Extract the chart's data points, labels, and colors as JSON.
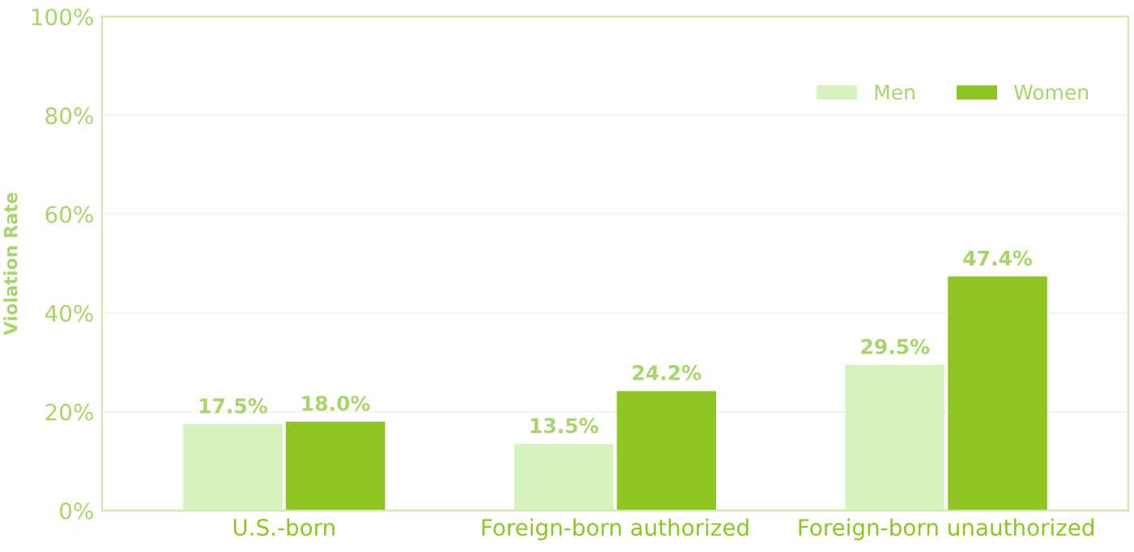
{
  "chart_data": {
    "type": "bar",
    "ylabel": "Violation Rate",
    "categories": [
      "U.S.-born",
      "Foreign-born authorized",
      "Foreign-born unauthorized"
    ],
    "series": [
      {
        "name": "Men",
        "color": "#d8f2bf",
        "values": [
          17.5,
          13.5,
          29.5
        ],
        "value_labels": [
          "17.5%",
          "13.5%",
          "29.5%"
        ]
      },
      {
        "name": "Women",
        "color": "#8fc425",
        "values": [
          18.0,
          24.2,
          47.4
        ],
        "value_labels": [
          "18.0%",
          "24.2%",
          "47.4%"
        ]
      }
    ],
    "ylim": [
      0,
      100
    ],
    "yticks": [
      {
        "value": 0,
        "label": "0%"
      },
      {
        "value": 20,
        "label": "20%"
      },
      {
        "value": 40,
        "label": "40%"
      },
      {
        "value": 60,
        "label": "60%"
      },
      {
        "value": 80,
        "label": "80%"
      },
      {
        "value": 100,
        "label": "100%"
      }
    ],
    "grid": "y",
    "legend": "top right"
  }
}
